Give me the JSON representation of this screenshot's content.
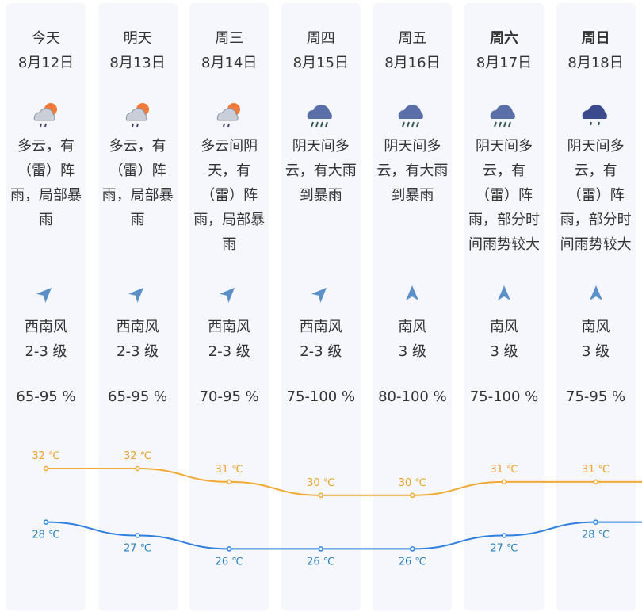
{
  "days": [
    {
      "day": "今天",
      "date": "8月12日",
      "weather": "多云，有（雷）阵雨，局部暴雨",
      "wind": "西南风",
      "level": "2-3 级",
      "humidity": "65-95 %",
      "high": 32,
      "high_label": "32 ℃",
      "low": 28,
      "low_label": "28 ℃"
    },
    {
      "day": "明天",
      "date": "8月13日",
      "weather": "多云，有（雷）阵雨，局部暴雨",
      "wind": "西南风",
      "level": "2-3 级",
      "humidity": "65-95 %",
      "high": 32,
      "high_label": "32 ℃",
      "low": 27,
      "low_label": "27 ℃"
    },
    {
      "day": "周三",
      "date": "8月14日",
      "weather": "多云间阴天，有（雷）阵雨，局部暴雨",
      "wind": "西南风",
      "level": "2-3 级",
      "humidity": "70-95 %",
      "high": 31,
      "high_label": "31 ℃",
      "low": 26,
      "low_label": "26 ℃"
    },
    {
      "day": "周四",
      "date": "8月15日",
      "weather": "阴天间多云，有大雨到暴雨",
      "wind": "西南风",
      "level": "2-3 级",
      "humidity": "75-100 %",
      "high": 30,
      "high_label": "30 ℃",
      "low": 26,
      "low_label": "26 ℃"
    },
    {
      "day": "周五",
      "date": "8月16日",
      "weather": "阴天间多云，有大雨到暴雨",
      "wind": "南风",
      "level": "3 级",
      "humidity": "80-100 %",
      "high": 30,
      "high_label": "30 ℃",
      "low": 26,
      "low_label": "26 ℃"
    },
    {
      "day": "周六",
      "date": "8月17日",
      "weather": "阴天间多云，有（雷）阵雨，部分时间雨势较大",
      "wind": "南风",
      "level": "3 级",
      "humidity": "75-100 %",
      "high": 31,
      "high_label": "31 ℃",
      "low": 27,
      "low_label": "27 ℃"
    },
    {
      "day": "周日",
      "date": "8月18日",
      "weather": "阴天间多云，有（雷）阵雨，部分时间雨势较大",
      "wind": "南风",
      "level": "3 级",
      "humidity": "75-95 %",
      "high": 31,
      "high_label": "31 ℃",
      "low": 28,
      "low_label": "28 ℃"
    }
  ]
}
